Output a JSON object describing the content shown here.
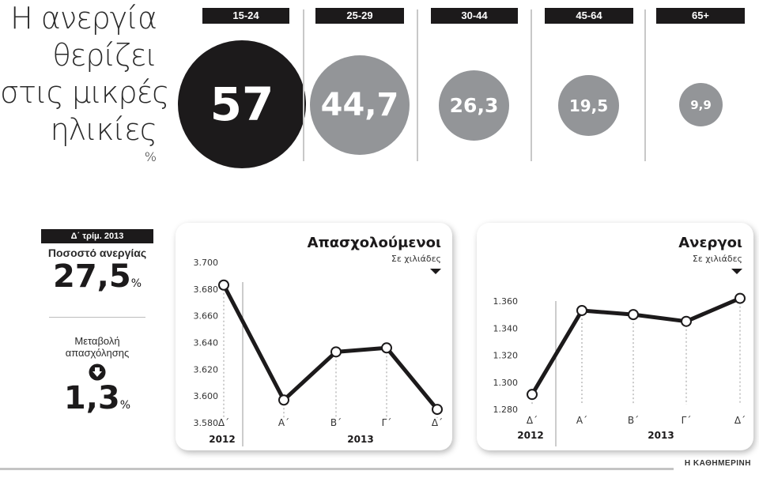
{
  "header": {
    "title_lines": [
      "Η ανεργία",
      "θερίζει",
      "στις μικρές",
      "ηλικίες"
    ],
    "unit": "%"
  },
  "age_groups": [
    {
      "label": "15-24",
      "value": "57",
      "color": "#1c1a1b"
    },
    {
      "label": "25-29",
      "value": "44,7",
      "color": "#939598"
    },
    {
      "label": "30-44",
      "value": "26,3",
      "color": "#939598"
    },
    {
      "label": "45-64",
      "value": "19,5",
      "color": "#939598"
    },
    {
      "label": "65+",
      "value": "9,9",
      "color": "#939598"
    }
  ],
  "stats": {
    "period": "Δ΄ τρίμ. 2013",
    "unemployment_label": "Ποσοστό ανεργίας",
    "unemployment_value": "27,5",
    "unemployment_unit": "%",
    "employment_change_label_1": "Μεταβολή",
    "employment_change_label_2": "απασχόλησης",
    "employment_change_value": "1,3",
    "employment_change_unit": "%",
    "direction_icon": "down-arrow-circle"
  },
  "chart_data": [
    {
      "type": "line",
      "title": "Απασχολούμενοι",
      "subtitle": "Σε χιλιάδες",
      "categories": [
        "Δ΄ 2012",
        "Α΄ 2013",
        "Β΄ 2013",
        "Γ΄ 2013",
        "Δ΄ 2013"
      ],
      "x_tick_labels": [
        "Δ΄",
        "Α΄",
        "Β΄",
        "Γ΄",
        "Δ΄"
      ],
      "year_labels": [
        "2012",
        "2013"
      ],
      "values": [
        3683,
        3597,
        3633,
        3636,
        3590
      ],
      "y_ticks": [
        "3.700",
        "3.680",
        "3.660",
        "3.640",
        "3.620",
        "3.600",
        "3.580"
      ],
      "ylim": [
        3580,
        3700
      ],
      "xlabel": "",
      "ylabel": "",
      "grid": false
    },
    {
      "type": "line",
      "title": "Ανεργοι",
      "subtitle": "Σε χιλιάδες",
      "categories": [
        "Δ΄ 2012",
        "Α΄ 2013",
        "Β΄ 2013",
        "Γ΄ 2013",
        "Δ΄ 2013"
      ],
      "x_tick_labels": [
        "Δ΄",
        "Α΄",
        "Β΄",
        "Γ΄",
        "Δ΄"
      ],
      "year_labels": [
        "2012",
        "2013"
      ],
      "values": [
        1291,
        1353,
        1350,
        1345,
        1362
      ],
      "y_ticks": [
        "1.360",
        "1.340",
        "1.320",
        "1.300",
        "1.280"
      ],
      "ylim": [
        1280,
        1360
      ],
      "xlabel": "",
      "ylabel": "",
      "grid": false
    }
  ],
  "footer": {
    "credit": "Η ΚΑΘΗΜΕΡΙΝΗ"
  }
}
